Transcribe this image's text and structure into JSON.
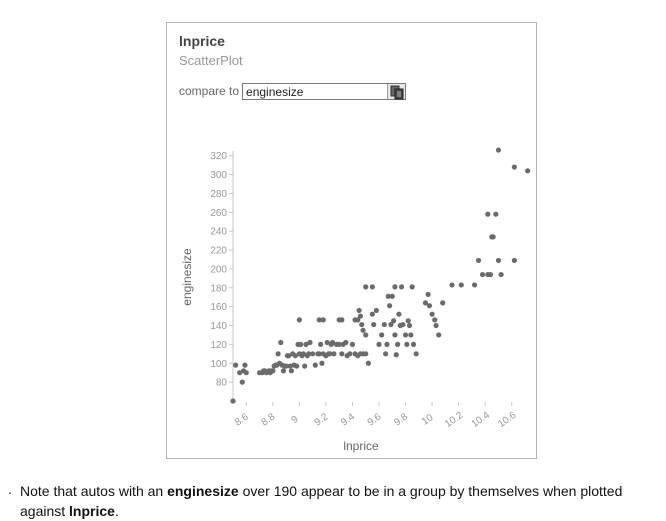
{
  "panel": {
    "title": "lnprice",
    "subtitle": "ScatterPlot",
    "compare_label": "compare to",
    "compare_value": "enginesize"
  },
  "chart_data": {
    "type": "scatter",
    "xlabel": "lnprice",
    "ylabel": "enginesize",
    "xlim": [
      8.5,
      10.7
    ],
    "ylim": [
      60,
      325
    ],
    "xticks": [
      "8.6",
      "8.8",
      "9",
      "9.2",
      "9.4",
      "9.6",
      "9.8",
      "10",
      "10.2",
      "10.4",
      "10.6"
    ],
    "yticks": [
      "80",
      "100",
      "120",
      "140",
      "160",
      "180",
      "200",
      "220",
      "240",
      "260",
      "280",
      "300",
      "320"
    ],
    "point_color": "#6b6b6b",
    "points": [
      [
        8.5,
        60
      ],
      [
        8.52,
        98
      ],
      [
        8.55,
        90
      ],
      [
        8.57,
        80
      ],
      [
        8.58,
        92
      ],
      [
        8.59,
        98
      ],
      [
        8.6,
        90
      ],
      [
        8.7,
        90
      ],
      [
        8.72,
        90
      ],
      [
        8.73,
        92
      ],
      [
        8.74,
        92
      ],
      [
        8.75,
        90
      ],
      [
        8.76,
        91
      ],
      [
        8.77,
        92
      ],
      [
        8.78,
        90
      ],
      [
        8.79,
        92
      ],
      [
        8.8,
        92
      ],
      [
        8.81,
        97
      ],
      [
        8.82,
        98
      ],
      [
        8.83,
        98
      ],
      [
        8.84,
        110
      ],
      [
        8.85,
        100
      ],
      [
        8.86,
        122
      ],
      [
        8.87,
        98
      ],
      [
        8.88,
        92
      ],
      [
        8.89,
        97
      ],
      [
        8.9,
        97
      ],
      [
        8.91,
        108
      ],
      [
        8.92,
        108
      ],
      [
        8.93,
        97
      ],
      [
        8.94,
        92
      ],
      [
        8.95,
        110
      ],
      [
        8.96,
        98
      ],
      [
        8.97,
        108
      ],
      [
        8.98,
        97
      ],
      [
        8.99,
        120
      ],
      [
        9.0,
        110
      ],
      [
        9.01,
        120
      ],
      [
        9.02,
        108
      ],
      [
        9.03,
        110
      ],
      [
        9.04,
        97
      ],
      [
        9.05,
        120
      ],
      [
        9.06,
        108
      ],
      [
        9.07,
        110
      ],
      [
        9.08,
        122
      ],
      [
        9.1,
        110
      ],
      [
        9.12,
        98
      ],
      [
        9.14,
        110
      ],
      [
        9.15,
        110
      ],
      [
        9.16,
        120
      ],
      [
        9.17,
        100
      ],
      [
        9.18,
        110
      ],
      [
        9.2,
        108
      ],
      [
        9.21,
        122
      ],
      [
        9.22,
        110
      ],
      [
        9.23,
        110
      ],
      [
        9.24,
        120
      ],
      [
        9.25,
        122
      ],
      [
        9.26,
        110
      ],
      [
        9.28,
        120
      ],
      [
        9.3,
        120
      ],
      [
        9.32,
        110
      ],
      [
        9.33,
        120
      ],
      [
        9.35,
        122
      ],
      [
        9.36,
        108
      ],
      [
        9.38,
        110
      ],
      [
        9.4,
        120
      ],
      [
        9.42,
        110
      ],
      [
        9.44,
        108
      ],
      [
        9.46,
        110
      ],
      [
        9.48,
        110
      ],
      [
        9.5,
        110
      ],
      [
        9.0,
        146
      ],
      [
        9.15,
        146
      ],
      [
        9.18,
        146
      ],
      [
        9.3,
        146
      ],
      [
        9.32,
        146
      ],
      [
        9.42,
        146
      ],
      [
        9.44,
        146
      ],
      [
        9.45,
        156
      ],
      [
        9.46,
        150
      ],
      [
        9.47,
        141
      ],
      [
        9.48,
        135
      ],
      [
        9.5,
        130
      ],
      [
        9.52,
        100
      ],
      [
        9.55,
        152
      ],
      [
        9.56,
        141
      ],
      [
        9.58,
        156
      ],
      [
        9.6,
        120
      ],
      [
        9.62,
        130
      ],
      [
        9.64,
        141
      ],
      [
        9.65,
        110
      ],
      [
        9.66,
        120
      ],
      [
        9.67,
        171
      ],
      [
        9.68,
        161
      ],
      [
        9.69,
        141
      ],
      [
        9.7,
        171
      ],
      [
        9.71,
        145
      ],
      [
        9.72,
        130
      ],
      [
        9.73,
        109
      ],
      [
        9.74,
        120
      ],
      [
        9.75,
        152
      ],
      [
        9.76,
        140
      ],
      [
        9.78,
        141
      ],
      [
        9.8,
        130
      ],
      [
        9.81,
        120
      ],
      [
        9.82,
        145
      ],
      [
        9.83,
        140
      ],
      [
        9.84,
        130
      ],
      [
        9.86,
        120
      ],
      [
        9.88,
        110
      ],
      [
        9.5,
        181
      ],
      [
        9.55,
        181
      ],
      [
        9.72,
        181
      ],
      [
        9.77,
        181
      ],
      [
        9.85,
        181
      ],
      [
        9.95,
        164
      ],
      [
        9.97,
        173
      ],
      [
        9.98,
        161
      ],
      [
        10.0,
        152
      ],
      [
        10.02,
        146
      ],
      [
        10.03,
        140
      ],
      [
        10.05,
        130
      ],
      [
        10.08,
        164
      ],
      [
        10.15,
        183
      ],
      [
        10.22,
        183
      ],
      [
        10.32,
        183
      ],
      [
        10.35,
        209
      ],
      [
        10.38,
        194
      ],
      [
        10.42,
        194
      ],
      [
        10.44,
        194
      ],
      [
        10.45,
        234
      ],
      [
        10.46,
        234
      ],
      [
        10.42,
        258
      ],
      [
        10.48,
        258
      ],
      [
        10.5,
        209
      ],
      [
        10.52,
        194
      ],
      [
        10.62,
        209
      ],
      [
        10.5,
        326
      ],
      [
        10.62,
        308
      ],
      [
        10.72,
        304
      ]
    ]
  },
  "note": {
    "bullet": ".",
    "text1": "Note that autos with an ",
    "bold1": "enginesize",
    "text2": " over 190 appear to be in a group by themselves when plotted against ",
    "bold2": "lnprice",
    "text3": "."
  }
}
